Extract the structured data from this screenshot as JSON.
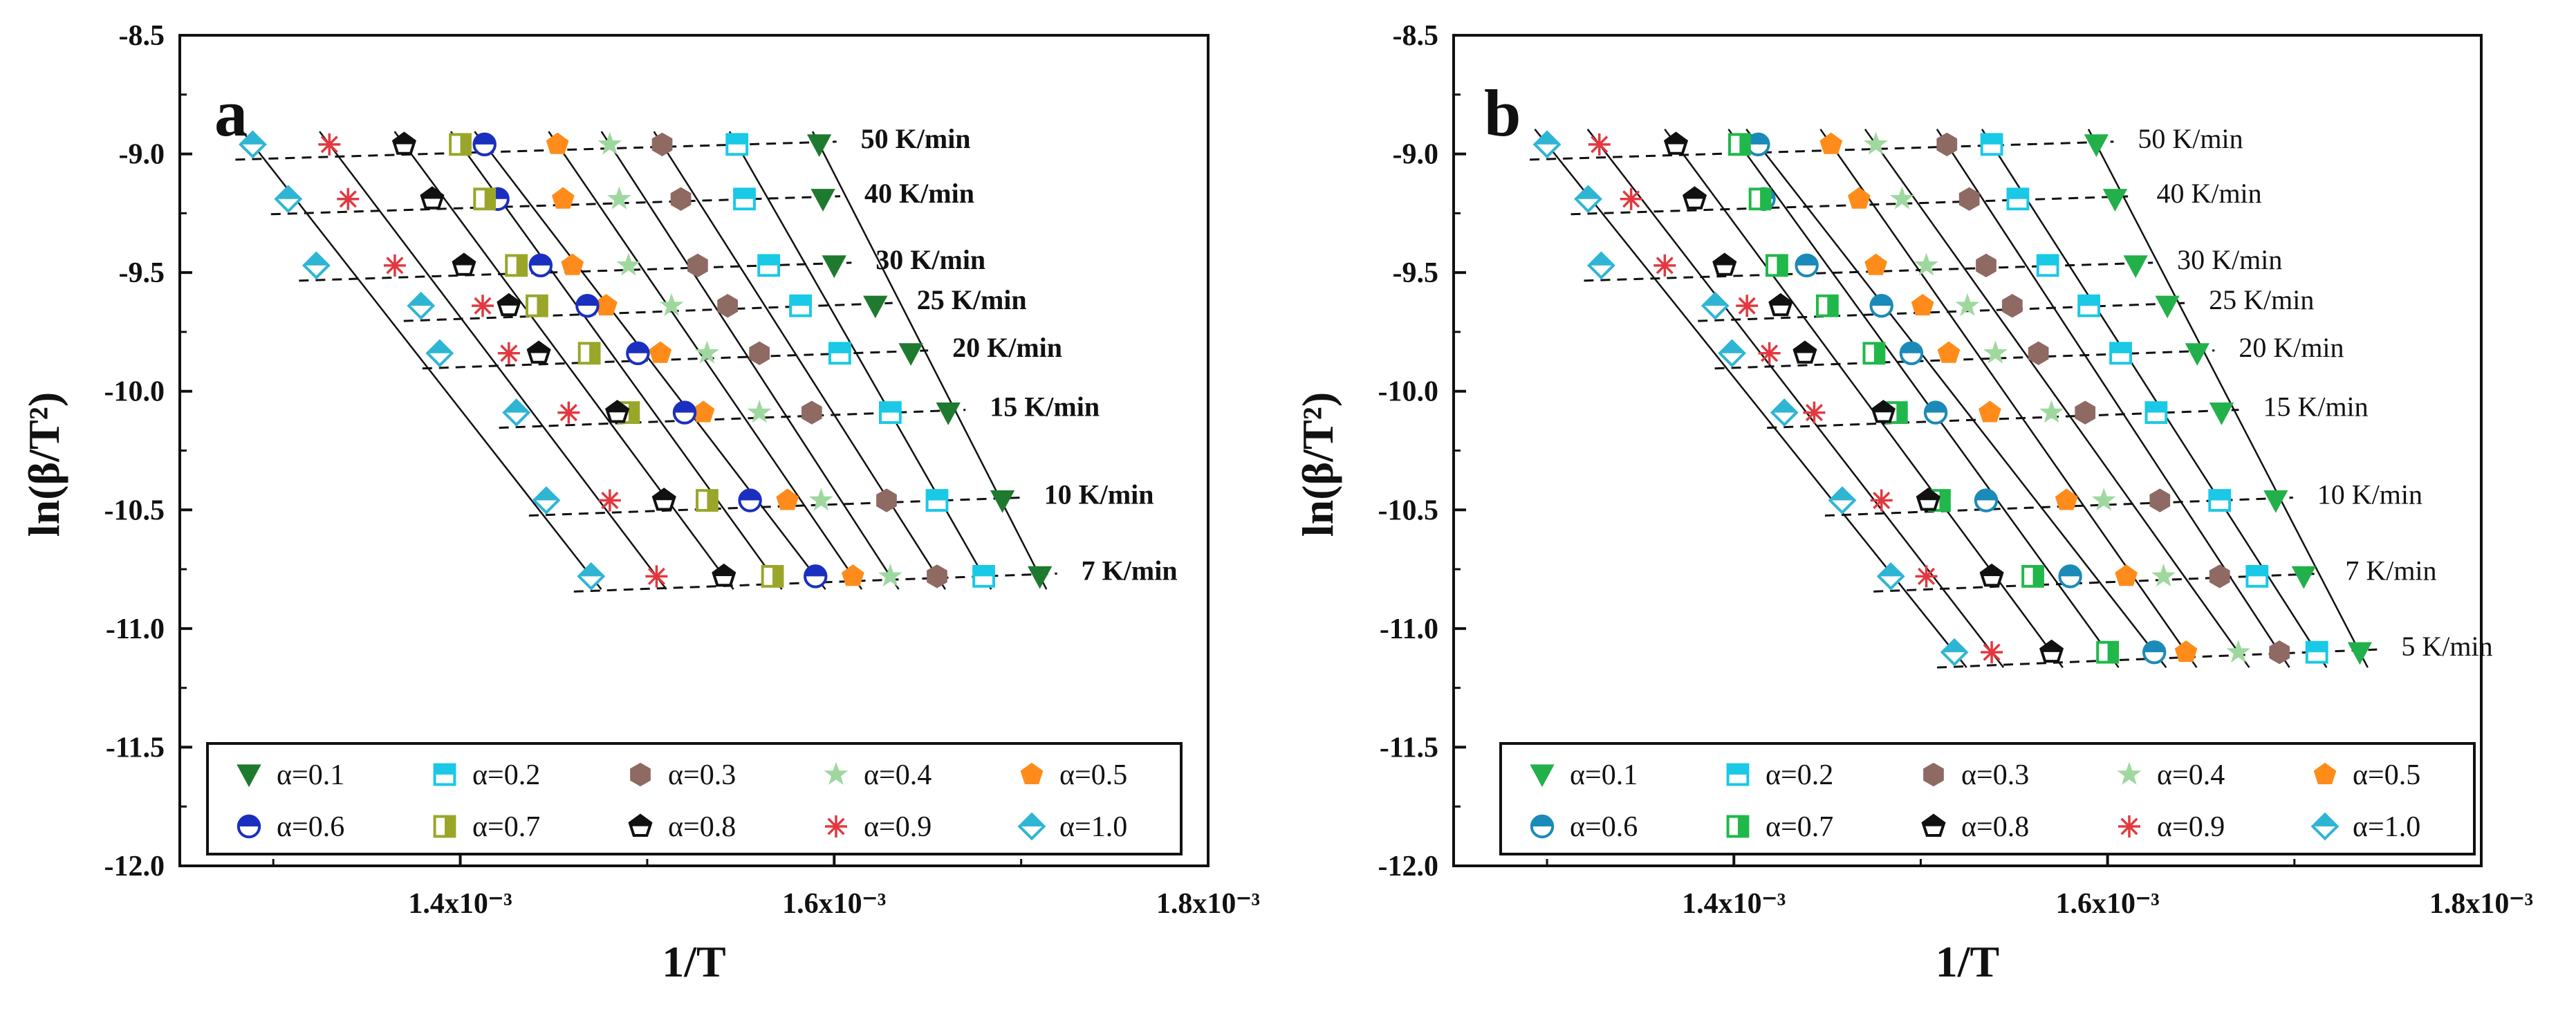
{
  "chart_data": [
    {
      "type": "scatter",
      "panel_label": "a",
      "xlabel": "1/T",
      "ylabel": "ln(β/T²)",
      "xlim": [
        0.00125,
        0.0018
      ],
      "ylim": [
        -12.0,
        -8.5
      ],
      "x_ticks": [
        0.0014,
        0.0016,
        0.0018
      ],
      "x_tick_labels": [
        "1.4x10⁻³",
        "1.6x10⁻³",
        "1.8x10⁻³"
      ],
      "y_ticks": [
        -8.5,
        -9.0,
        -9.5,
        -10.0,
        -10.5,
        -11.0,
        -11.5,
        -12.0
      ],
      "y_tick_labels": [
        "-8.5",
        "-9.0",
        "-9.5",
        "-10.0",
        "-10.5",
        "-11.0",
        "-11.5",
        "-12.0"
      ],
      "rates": [
        "50 K/min",
        "40 K/min",
        "30 K/min",
        "25 K/min",
        "20 K/min",
        "15 K/min",
        "10 K/min",
        "7 K/min"
      ],
      "rate_y": [
        -8.96,
        -9.19,
        -9.47,
        -9.64,
        -9.84,
        -10.09,
        -10.46,
        -10.78
      ],
      "legend": [
        "α=0.1",
        "α=0.2",
        "α=0.3",
        "α=0.4",
        "α=0.5",
        "α=0.6",
        "α=0.7",
        "α=0.8",
        "α=0.9",
        "α=1.0"
      ],
      "series": [
        {
          "name": "α=0.1",
          "x": [
            0.001592,
            0.001594,
            0.0016,
            0.001622,
            0.001641,
            0.001661,
            0.00169,
            0.00171
          ]
        },
        {
          "name": "α=0.2",
          "x": [
            0.001548,
            0.001552,
            0.001565,
            0.001582,
            0.001603,
            0.00163,
            0.001655,
            0.00168
          ]
        },
        {
          "name": "α=0.3",
          "x": [
            0.001508,
            0.001518,
            0.001527,
            0.001543,
            0.00156,
            0.001588,
            0.001628,
            0.001655
          ]
        },
        {
          "name": "α=0.4",
          "x": [
            0.00148,
            0.001485,
            0.00149,
            0.001513,
            0.001532,
            0.00156,
            0.001593,
            0.00163
          ]
        },
        {
          "name": "α=0.5",
          "x": [
            0.001452,
            0.001455,
            0.00146,
            0.001478,
            0.001507,
            0.00153,
            0.001575,
            0.00161
          ]
        },
        {
          "name": "α=0.6",
          "x": [
            0.001413,
            0.00142,
            0.001443,
            0.001468,
            0.001495,
            0.00152,
            0.001555,
            0.00159
          ]
        },
        {
          "name": "α=0.7",
          "x": [
            0.0014,
            0.001413,
            0.00143,
            0.001441,
            0.001469,
            0.00149,
            0.001532,
            0.001567
          ]
        },
        {
          "name": "α=0.8",
          "x": [
            0.00137,
            0.001385,
            0.001402,
            0.001426,
            0.001442,
            0.001484,
            0.001509,
            0.001541
          ]
        },
        {
          "name": "α=0.9",
          "x": [
            0.00133,
            0.00134,
            0.001365,
            0.001412,
            0.001426,
            0.001458,
            0.00148,
            0.001505
          ]
        },
        {
          "name": "α=1.0",
          "x": [
            0.001289,
            0.001308,
            0.001323,
            0.001379,
            0.001389,
            0.00143,
            0.001446,
            0.00147
          ]
        }
      ]
    },
    {
      "type": "scatter",
      "panel_label": "b",
      "xlabel": "1/T",
      "ylabel": "ln(β/T²)",
      "xlim": [
        0.00125,
        0.0018
      ],
      "ylim": [
        -12.0,
        -8.5
      ],
      "x_ticks": [
        0.0014,
        0.0016,
        0.0018
      ],
      "x_tick_labels": [
        "1.4x10⁻³",
        "1.6x10⁻³",
        "1.8x10⁻³"
      ],
      "y_ticks": [
        -8.5,
        -9.0,
        -9.5,
        -10.0,
        -10.5,
        -11.0,
        -11.5,
        -12.0
      ],
      "y_tick_labels": [
        "-8.5",
        "-9.0",
        "-9.5",
        "-10.0",
        "-10.5",
        "-11.0",
        "-11.5",
        "-12.0"
      ],
      "rates": [
        "50 K/min",
        "40 K/min",
        "30 K/min",
        "25 K/min",
        "20 K/min",
        "15 K/min",
        "10 K/min",
        "7 K/min",
        "5 K/min"
      ],
      "rate_y": [
        -8.96,
        -9.19,
        -9.47,
        -9.64,
        -9.84,
        -10.09,
        -10.46,
        -10.78,
        -11.1
      ],
      "legend": [
        "α=0.1",
        "α=0.2",
        "α=0.3",
        "α=0.4",
        "α=0.5",
        "α=0.6",
        "α=0.7",
        "α=0.8",
        "α=0.9",
        "α=1.0"
      ],
      "series": [
        {
          "name": "α=0.1",
          "x": [
            0.001594,
            0.001604,
            0.001615,
            0.001632,
            0.001648,
            0.001661,
            0.00169,
            0.001705,
            0.001735
          ]
        },
        {
          "name": "α=0.2",
          "x": [
            0.001538,
            0.001552,
            0.001568,
            0.00159,
            0.001607,
            0.001626,
            0.00166,
            0.00168,
            0.001712
          ]
        },
        {
          "name": "α=0.3",
          "x": [
            0.001514,
            0.001526,
            0.001535,
            0.001549,
            0.001563,
            0.001588,
            0.001628,
            0.00166,
            0.001692
          ]
        },
        {
          "name": "α=0.4",
          "x": [
            0.001476,
            0.00149,
            0.001503,
            0.001525,
            0.00154,
            0.00157,
            0.001598,
            0.00163,
            0.00167
          ]
        },
        {
          "name": "α=0.5",
          "x": [
            0.001452,
            0.001467,
            0.001476,
            0.001501,
            0.001515,
            0.001537,
            0.001578,
            0.00161,
            0.001642
          ]
        },
        {
          "name": "α=0.6",
          "x": [
            0.001413,
            0.001416,
            0.001439,
            0.001479,
            0.001495,
            0.001508,
            0.001535,
            0.00158,
            0.001625
          ]
        },
        {
          "name": "α=0.7",
          "x": [
            0.001403,
            0.001414,
            0.001423,
            0.00145,
            0.001475,
            0.001487,
            0.00151,
            0.00156,
            0.0016
          ]
        },
        {
          "name": "α=0.8",
          "x": [
            0.001369,
            0.001379,
            0.001395,
            0.001425,
            0.001438,
            0.00148,
            0.001504,
            0.001538,
            0.00157
          ]
        },
        {
          "name": "α=0.9",
          "x": [
            0.001328,
            0.001345,
            0.001363,
            0.001407,
            0.001419,
            0.001443,
            0.001479,
            0.001503,
            0.001538
          ]
        },
        {
          "name": "α=1.0",
          "x": [
            0.0013,
            0.001322,
            0.001329,
            0.00139,
            0.001399,
            0.001427,
            0.001458,
            0.001484,
            0.001518
          ]
        }
      ]
    }
  ],
  "styles": {
    "line_color": "#111111",
    "series_colors": [
      "#1e7a2e",
      "#19c9e6",
      "#8e6a63",
      "#9fd89f",
      "#ff8c1a",
      "#1a2fbf",
      "#9aa62a",
      "#111111",
      "#e2383f",
      "#2fb5d4"
    ],
    "series_colors_b": [
      "#22b04a",
      "#19c9e6",
      "#8e6a63",
      "#9fd89f",
      "#ff8c1a",
      "#1a8ab8",
      "#20b84a",
      "#111111",
      "#e2383f",
      "#2fb5d4"
    ],
    "series_markers": [
      "triangle-down-icon",
      "half-square-icon",
      "hexagon-icon",
      "star-icon",
      "pentagon-icon",
      "half-circle-icon",
      "half-square-vertical-icon",
      "half-pentagon-icon",
      "asterisk-icon",
      "half-diamond-icon"
    ]
  }
}
